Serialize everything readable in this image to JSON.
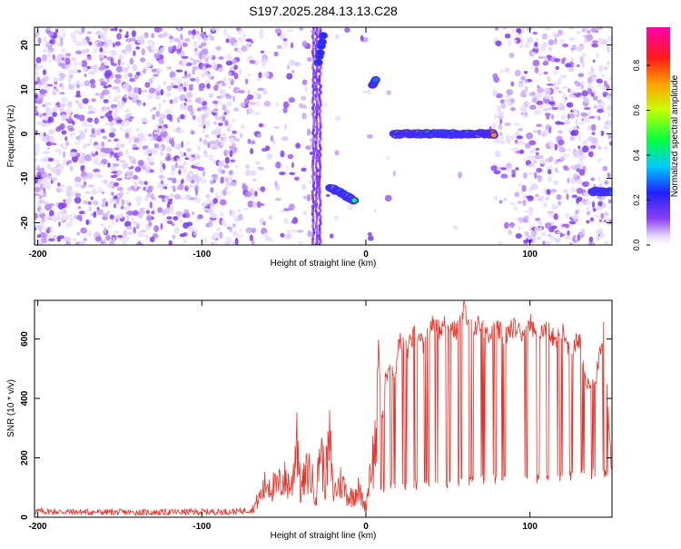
{
  "figure": {
    "title": "S197.2025.284.13.13.C28"
  },
  "chart_data": [
    {
      "type": "heatmap",
      "xlabel": "Height of straight line (km)",
      "ylabel": "Frequency (Hz)",
      "xlim": [
        -202,
        150
      ],
      "ylim": [
        -25,
        24
      ],
      "xticks": [
        -200,
        -100,
        0,
        100
      ],
      "yticks": [
        -20,
        -10,
        0,
        10,
        20
      ],
      "tick_labels_x": [
        "-200",
        "-100",
        "0",
        "100"
      ],
      "tick_labels_y": [
        "-20",
        "-10",
        "0",
        "10",
        "20"
      ],
      "colorbar": {
        "label": "Normalized spectral amplitude",
        "range": [
          0,
          0.97
        ],
        "ticks": [
          0.0,
          0.2,
          0.4,
          0.6,
          0.8
        ],
        "tick_labels": [
          "0.0",
          "0.2",
          "0.4",
          "0.6",
          "0.8"
        ]
      },
      "features": [
        {
          "name": "line",
          "x": [
            17,
            78
          ],
          "freq": 0,
          "amp": [
            0.3,
            0.95
          ]
        },
        {
          "name": "cluster",
          "x": [
            -22,
            -7
          ],
          "freq": [
            -12,
            -15
          ],
          "amp": [
            0.25,
            0.55
          ]
        },
        {
          "name": "cluster",
          "x": [
            4,
            6
          ],
          "freq": [
            11,
            12
          ],
          "amp": 0.3
        },
        {
          "name": "cluster",
          "x": [
            -29,
            -26
          ],
          "freq": [
            16,
            22
          ],
          "amp": 0.25
        },
        {
          "name": "cluster",
          "x": [
            138,
            150
          ],
          "freq": -13,
          "amp": 0.3
        }
      ]
    },
    {
      "type": "line",
      "xlabel": "Height of straight line (km)",
      "ylabel": "SNR (10 * v/v)",
      "xlim": [
        -202,
        150
      ],
      "ylim": [
        0,
        730
      ],
      "xticks": [
        -200,
        -100,
        0,
        100
      ],
      "yticks": [
        0,
        200,
        400,
        600
      ],
      "tick_labels_x": [
        "-200",
        "-100",
        "0",
        "100"
      ],
      "tick_labels_y": [
        "0",
        "200",
        "400",
        "600"
      ],
      "series": [
        {
          "color": "#e8332a",
          "x": [
            -202,
            -180,
            -160,
            -140,
            -120,
            -100,
            -80,
            -70,
            -65,
            -60,
            -55,
            -50,
            -45,
            -42,
            -40,
            -35,
            -30,
            -28,
            -25,
            -22,
            -20,
            -15,
            -10,
            -5,
            0,
            3,
            5,
            8,
            10,
            12,
            15,
            18,
            20,
            25,
            30,
            35,
            40,
            45,
            50,
            55,
            60,
            65,
            70,
            75,
            80,
            85,
            90,
            95,
            100,
            105,
            110,
            115,
            120,
            125,
            130,
            135,
            140,
            145,
            150
          ],
          "y": [
            20,
            18,
            17,
            16,
            17,
            18,
            19,
            25,
            80,
            150,
            120,
            160,
            130,
            380,
            110,
            200,
            90,
            320,
            150,
            310,
            100,
            150,
            80,
            120,
            40,
            230,
            250,
            520,
            300,
            470,
            520,
            480,
            600,
            560,
            620,
            580,
            650,
            630,
            660,
            620,
            700,
            640,
            650,
            620,
            630,
            610,
            640,
            620,
            660,
            600,
            640,
            600,
            620,
            560,
            600,
            430,
            470,
            640,
            120
          ]
        }
      ]
    }
  ]
}
